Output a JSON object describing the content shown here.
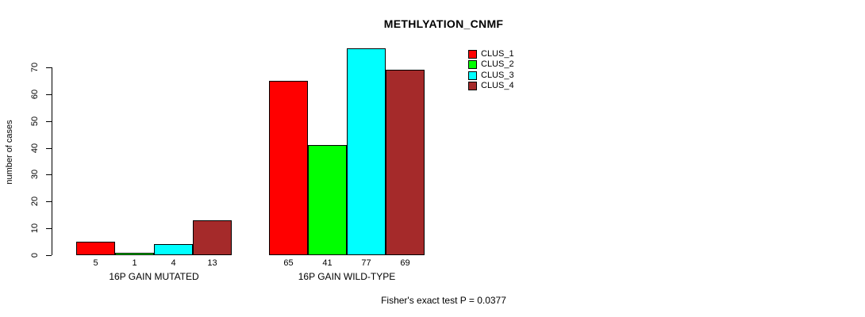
{
  "chart_data": {
    "type": "bar",
    "title": "METHLYATION_CNMF",
    "ylabel": "number of cases",
    "xlabel": "",
    "footnote": "Fisher's exact test P = 0.0377",
    "categories": [
      "16P GAIN MUTATED",
      "16P GAIN WILD-TYPE"
    ],
    "series": [
      {
        "name": "CLUS_1",
        "color": "#ff0000",
        "values": [
          5,
          65
        ]
      },
      {
        "name": "CLUS_2",
        "color": "#00ff00",
        "values": [
          1,
          41
        ]
      },
      {
        "name": "CLUS_3",
        "color": "#00ffff",
        "values": [
          4,
          77
        ]
      },
      {
        "name": "CLUS_4",
        "color": "#a52a2a",
        "values": [
          13,
          69
        ]
      }
    ],
    "yticks": [
      0,
      10,
      20,
      30,
      40,
      50,
      60,
      70
    ],
    "ylim": [
      0,
      70
    ],
    "bar_value_labels_shown": true,
    "legend_position": "top-right",
    "grid": false,
    "bar_border_color": "#000000",
    "text_color": "#000000",
    "background_color": "#ffffff"
  }
}
